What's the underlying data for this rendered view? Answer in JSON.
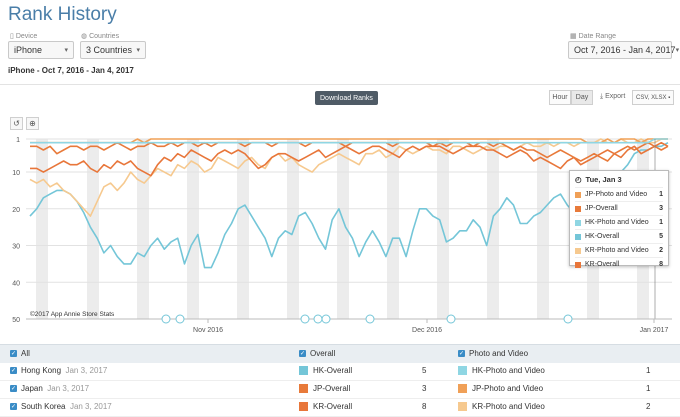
{
  "page": {
    "title": "Rank History"
  },
  "filters": {
    "device_label": "Device",
    "device_value": "iPhone",
    "countries_label": "Countries",
    "countries_value": "3 Countries",
    "date_label": "Date Range",
    "date_value": "Oct 7, 2016 - Jan 4, 2017"
  },
  "subtitle": "iPhone - Oct 7, 2016 - Jan 4, 2017",
  "toolbar": {
    "download": "Download Ranks",
    "hour": "Hour",
    "day": "Day",
    "export": "Export",
    "csv": "CSV, XLSX"
  },
  "chart_data": {
    "type": "line",
    "y_reversed": true,
    "ylim": [
      1,
      50
    ],
    "yticks": [
      "1",
      "10",
      "20",
      "30",
      "40",
      "50"
    ],
    "xtick_labels": [
      "Nov 2016",
      "Dec 2016",
      "Jan 2017"
    ],
    "copyright": "©2017 App Annie Store Stats",
    "colors": {
      "jp_photo": "#f0a057",
      "jp_overall": "#e87a3a",
      "hk_photo": "#8fd6e3",
      "hk_overall": "#74c6d8",
      "kr_photo": "#f6c98f",
      "kr_overall": "#e8763a"
    },
    "series": [
      {
        "key": "hk_overall",
        "values": [
          22,
          20,
          17,
          16,
          15,
          15,
          16,
          18,
          21,
          25,
          28,
          32,
          30,
          33,
          35,
          35,
          32,
          33,
          30,
          28,
          31,
          29,
          28,
          35,
          30,
          27,
          36,
          36,
          32,
          27,
          24,
          20,
          19,
          22,
          25,
          28,
          33,
          28,
          26,
          27,
          22,
          21,
          24,
          28,
          31,
          23,
          20,
          25,
          28,
          33,
          29,
          26,
          29,
          33,
          28,
          28,
          33,
          26,
          20,
          20,
          22,
          23,
          29,
          28,
          26,
          26,
          23,
          25,
          30,
          22,
          20,
          17,
          19,
          24,
          24,
          22,
          21,
          19,
          17,
          16,
          19,
          21,
          17,
          14,
          12,
          16,
          20,
          15,
          10,
          8,
          5,
          4,
          4,
          3,
          3,
          2
        ]
      },
      {
        "key": "kr_photo",
        "values": [
          12,
          13,
          12,
          14,
          13,
          15,
          16,
          18,
          20,
          22,
          18,
          14,
          13,
          15,
          13,
          10,
          12,
          13,
          11,
          9,
          10,
          11,
          8,
          9,
          7,
          8,
          10,
          9,
          6,
          7,
          8,
          9,
          7,
          6,
          8,
          9,
          6,
          5,
          7,
          6,
          8,
          9,
          10,
          8,
          7,
          6,
          5,
          6,
          7,
          8,
          5,
          5,
          4,
          6,
          5,
          3,
          4,
          5,
          4,
          3,
          4,
          4,
          5,
          3,
          3,
          4,
          5,
          4,
          3,
          4,
          3,
          3,
          4,
          3,
          2,
          3,
          3,
          2,
          3,
          2,
          2,
          3,
          2,
          2,
          2,
          1,
          2,
          2,
          1,
          2,
          2,
          1,
          2,
          2,
          1,
          1
        ]
      },
      {
        "key": "kr_overall",
        "values": [
          9,
          9,
          10,
          9,
          8,
          7,
          8,
          8,
          7,
          9,
          10,
          8,
          9,
          7,
          8,
          7,
          9,
          10,
          11,
          8,
          6,
          7,
          5,
          6,
          4,
          5,
          6,
          7,
          5,
          4,
          5,
          4,
          5,
          7,
          9,
          8,
          6,
          5,
          5,
          6,
          7,
          6,
          5,
          4,
          6,
          5,
          4,
          3,
          4,
          5,
          4,
          3,
          3,
          4,
          5,
          6,
          4,
          3,
          4,
          3,
          3,
          3,
          4,
          5,
          4,
          3,
          3,
          3,
          4,
          4,
          5,
          6,
          5,
          4,
          5,
          7,
          6,
          7,
          8,
          9,
          7,
          6,
          8,
          7,
          6,
          5,
          4,
          5,
          6,
          4,
          3,
          5,
          4,
          3,
          2,
          3
        ]
      },
      {
        "key": "jp_overall",
        "values": [
          3,
          3,
          4,
          3,
          5,
          4,
          3,
          3,
          4,
          3,
          3,
          4,
          3,
          2,
          3,
          4,
          3,
          3,
          2,
          3,
          3,
          2,
          3,
          2,
          2,
          3,
          2,
          3,
          2,
          2,
          2,
          2,
          3,
          2,
          2,
          2,
          3,
          2,
          2,
          2,
          2,
          3,
          2,
          2,
          2,
          2,
          2,
          3,
          2,
          2,
          2,
          2,
          2,
          2,
          3,
          2,
          2,
          2,
          2,
          2,
          3,
          2,
          3,
          2,
          2,
          2,
          3,
          2,
          2,
          3,
          2,
          3,
          4,
          3,
          4,
          4,
          5,
          6,
          5,
          4,
          5,
          6,
          7,
          6,
          5,
          6,
          7,
          5,
          4,
          3,
          4,
          3,
          2,
          3,
          4,
          3
        ]
      },
      {
        "key": "jp_photo",
        "values": [
          2,
          2,
          2,
          2,
          2,
          2,
          2,
          2,
          2,
          2,
          2,
          2,
          2,
          2,
          2,
          2,
          1,
          2,
          1,
          1,
          1,
          1,
          1,
          1,
          1,
          1,
          1,
          1,
          1,
          1,
          1,
          1,
          1,
          1,
          1,
          1,
          1,
          1,
          1,
          1,
          1,
          1,
          1,
          1,
          1,
          1,
          1,
          1,
          1,
          1,
          1,
          1,
          1,
          1,
          1,
          1,
          1,
          1,
          1,
          1,
          1,
          1,
          1,
          1,
          1,
          1,
          1,
          1,
          1,
          1,
          1,
          1,
          1,
          1,
          1,
          1,
          1,
          1,
          1,
          1,
          1,
          1,
          1,
          2,
          2,
          2,
          1,
          2,
          1,
          1,
          1,
          2,
          1,
          1,
          1,
          1
        ]
      },
      {
        "key": "hk_photo",
        "values": [
          2,
          2,
          2,
          2,
          2,
          2,
          2,
          2,
          2,
          2,
          2,
          2,
          2,
          2,
          2,
          2,
          2,
          2,
          2,
          2,
          2,
          2,
          2,
          2,
          2,
          2,
          2,
          2,
          2,
          2,
          2,
          2,
          2,
          2,
          2,
          2,
          2,
          2,
          2,
          2,
          2,
          2,
          2,
          2,
          2,
          2,
          2,
          2,
          2,
          2,
          2,
          2,
          2,
          2,
          2,
          2,
          2,
          2,
          2,
          2,
          2,
          2,
          2,
          2,
          2,
          2,
          2,
          2,
          2,
          2,
          2,
          2,
          2,
          2,
          2,
          2,
          2,
          2,
          2,
          2,
          2,
          2,
          2,
          2,
          2,
          2,
          2,
          2,
          2,
          2,
          2,
          2,
          2,
          1,
          1,
          1
        ]
      }
    ],
    "tooltip": {
      "date": "Tue, Jan 3",
      "rows": [
        {
          "label": "JP-Photo and Video",
          "value": "1",
          "color_key": "jp_photo"
        },
        {
          "label": "JP-Overall",
          "value": "3",
          "color_key": "jp_overall"
        },
        {
          "label": "HK-Photo and Video",
          "value": "1",
          "color_key": "hk_photo"
        },
        {
          "label": "HK-Overall",
          "value": "5",
          "color_key": "hk_overall"
        },
        {
          "label": "KR-Photo and Video",
          "value": "2",
          "color_key": "kr_photo"
        },
        {
          "label": "KR-Overall",
          "value": "8",
          "color_key": "kr_overall"
        }
      ]
    }
  },
  "table": {
    "all_label": "All",
    "overall_label": "Overall",
    "photo_label": "Photo and Video",
    "rows": [
      {
        "country": "Hong Kong",
        "date": "Jan 3, 2017",
        "overall_label": "HK-Overall",
        "overall_rank": "5",
        "photo_label": "HK-Photo and Video",
        "photo_rank": "1"
      },
      {
        "country": "Japan",
        "date": "Jan 3, 2017",
        "overall_label": "JP-Overall",
        "overall_rank": "3",
        "photo_label": "JP-Photo and Video",
        "photo_rank": "1"
      },
      {
        "country": "South Korea",
        "date": "Jan 3, 2017",
        "overall_label": "KR-Overall",
        "overall_rank": "8",
        "photo_label": "KR-Photo and Video",
        "photo_rank": "2"
      }
    ]
  }
}
